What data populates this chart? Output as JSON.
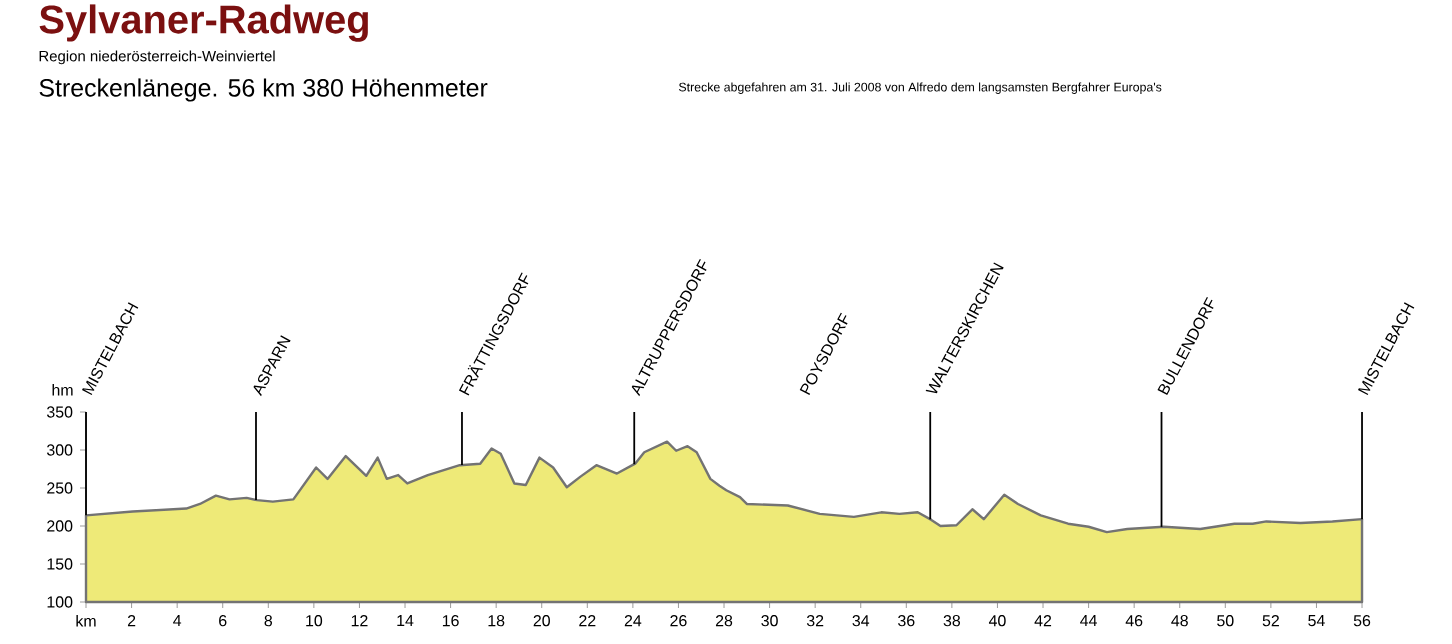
{
  "chart_data": {
    "type": "area",
    "title": "Sylvaner-Radweg",
    "subtitle": "Region niederösterreich-Weinviertel",
    "ylabel": "hm",
    "annotations": [
      "Streckenlänege. 56 km  380 Höhenmeter",
      "Strecke abgefahren am 31. Juli 2008 von Alfredo dem langsamsten Bergfahrer Europa's",
      "POYSDORF"
    ],
    "x": [
      0,
      2.05,
      4.4,
      5.0,
      5.7,
      6.3,
      7.05,
      7.5,
      8.2,
      9.1,
      10.1,
      10.6,
      11.4,
      12.3,
      12.8,
      13.2,
      13.7,
      14.1,
      15.0,
      16.4,
      17.3,
      17.8,
      18.2,
      18.8,
      19.3,
      19.9,
      20.5,
      21.1,
      21.7,
      22.4,
      23.3,
      24.1,
      24.5,
      25.5,
      25.9,
      26.4,
      26.8,
      27.4,
      27.8,
      28.1,
      28.7,
      29.0,
      30.8,
      32.2,
      33.7,
      34.9,
      35.7,
      36.5,
      37.1,
      37.5,
      38.2,
      38.9,
      39.4,
      40.3,
      40.9,
      41.9,
      43.1,
      44.0,
      44.8,
      45.7,
      47.3,
      48.9,
      50.4,
      51.2,
      51.8,
      53.3,
      54.7,
      56.0
    ],
    "series": [
      {
        "color": "#eeea78",
        "values": [
          214,
          219,
          223,
          229,
          240,
          235,
          237,
          234,
          232,
          235,
          277,
          262,
          292,
          266,
          290,
          262,
          267,
          256,
          267,
          280,
          282,
          302,
          295,
          256,
          254,
          290,
          277,
          251,
          265,
          280,
          269,
          282,
          297,
          311,
          299,
          305,
          297,
          262,
          253,
          247,
          238,
          229,
          227,
          216,
          212,
          218,
          216,
          218,
          208,
          200,
          201,
          222,
          209,
          241,
          229,
          214,
          203,
          199,
          192,
          196,
          199,
          196,
          203,
          203,
          206,
          204,
          206,
          209
        ]
      }
    ],
    "xlim": [
      0,
      56
    ],
    "ylim": [
      100,
      350
    ],
    "xticks": [
      {
        "value": 0,
        "label": "km"
      },
      2,
      4,
      6,
      8,
      10,
      12,
      14,
      16,
      18,
      20,
      22,
      24,
      26,
      28,
      30,
      32,
      34,
      36,
      38,
      40,
      42,
      44,
      46,
      48,
      50,
      52,
      54,
      56
    ],
    "yticks": [
      100,
      150,
      200,
      250,
      300,
      350
    ],
    "ref_lines": [
      {
        "axis": "x",
        "value": 0,
        "label": "MISTELBACH"
      },
      {
        "axis": "x",
        "value": 7.46,
        "label": "ASPARN"
      },
      {
        "axis": "x",
        "value": 16.5,
        "label": "FRÄTTINGSDORF"
      },
      {
        "axis": "x",
        "value": 24.06,
        "label": "ALTRUPPERSDORF"
      },
      {
        "axis": "x",
        "value": 37.05,
        "label": "WALTERSKIRCHEN"
      },
      {
        "axis": "x",
        "value": 47.2,
        "label": "BULLENDORF"
      },
      {
        "axis": "x",
        "value": 56,
        "label": "MISTELBACH"
      }
    ]
  }
}
